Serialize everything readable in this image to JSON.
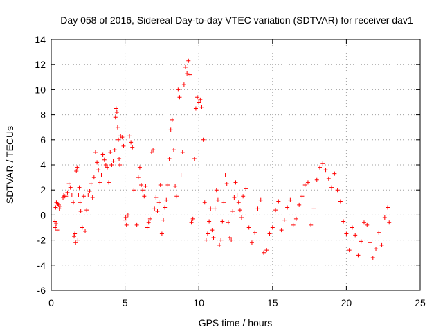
{
  "chart_data": {
    "type": "scatter",
    "title": "Day 058 of 2016, Sidereal Day-to-day VTEC variation (SDTVAR) for receiver dav1",
    "xlabel": "GPS time / hours",
    "ylabel": "SDTVAR / TECUs",
    "xlim": [
      0,
      25
    ],
    "ylim": [
      -6,
      14
    ],
    "x_ticks": [
      "0",
      "5",
      "10",
      "15",
      "20",
      "25"
    ],
    "y_ticks": [
      "-6",
      "-4",
      "-2",
      "0",
      "2",
      "4",
      "6",
      "8",
      "10",
      "12",
      "14"
    ],
    "grid": true,
    "marker": "plus",
    "marker_color": "#ff0000",
    "series": [
      {
        "name": "SDTVAR",
        "x": [
          0.25,
          0.28,
          0.3,
          0.33,
          0.35,
          0.4,
          0.45,
          0.5,
          0.55,
          0.6,
          0.8,
          0.85,
          0.9,
          1.0,
          1.1,
          1.2,
          1.3,
          1.4,
          1.5,
          1.55,
          1.6,
          1.65,
          1.7,
          1.75,
          1.8,
          1.85,
          1.9,
          1.95,
          2.0,
          2.1,
          2.2,
          2.3,
          2.4,
          2.5,
          2.6,
          2.7,
          2.8,
          2.9,
          3.0,
          3.1,
          3.2,
          3.3,
          3.4,
          3.5,
          3.6,
          3.7,
          3.8,
          3.9,
          4.0,
          4.1,
          4.2,
          4.3,
          4.35,
          4.4,
          4.45,
          4.5,
          4.55,
          4.6,
          4.65,
          4.7,
          4.8,
          4.9,
          5.0,
          5.05,
          5.1,
          5.2,
          5.3,
          5.4,
          5.5,
          5.6,
          5.8,
          5.9,
          6.0,
          6.1,
          6.2,
          6.3,
          6.4,
          6.5,
          6.6,
          6.7,
          6.8,
          6.9,
          7.0,
          7.1,
          7.2,
          7.3,
          7.4,
          7.5,
          7.6,
          7.7,
          7.8,
          7.9,
          8.0,
          8.1,
          8.2,
          8.3,
          8.4,
          8.5,
          8.6,
          8.7,
          8.8,
          8.9,
          9.0,
          9.1,
          9.2,
          9.3,
          9.4,
          9.5,
          9.6,
          9.7,
          9.8,
          9.9,
          10.0,
          10.1,
          10.2,
          10.3,
          10.4,
          10.5,
          10.6,
          10.7,
          10.8,
          10.9,
          11.0,
          11.1,
          11.2,
          11.3,
          11.4,
          11.5,
          11.6,
          11.7,
          11.8,
          11.9,
          12.0,
          12.1,
          12.2,
          12.3,
          12.4,
          12.5,
          12.6,
          12.7,
          12.8,
          12.9,
          13.0,
          13.2,
          13.4,
          13.6,
          13.8,
          14.0,
          14.2,
          14.4,
          14.6,
          14.8,
          15.0,
          15.2,
          15.4,
          15.6,
          15.8,
          16.0,
          16.2,
          16.4,
          16.6,
          16.8,
          17.0,
          17.2,
          17.4,
          17.6,
          17.8,
          18.0,
          18.2,
          18.4,
          18.6,
          18.8,
          19.0,
          19.2,
          19.4,
          19.6,
          19.8,
          20.0,
          20.2,
          20.4,
          20.6,
          20.8,
          21.0,
          21.2,
          21.4,
          21.6,
          21.8,
          22.0,
          22.2,
          22.4,
          22.6,
          22.8,
          22.9
        ],
        "y": [
          -0.5,
          -1.0,
          0.6,
          -0.7,
          1.0,
          -1.2,
          0.9,
          0.8,
          0.5,
          0.7,
          1.4,
          1.6,
          1.5,
          1.5,
          1.8,
          2.5,
          2.2,
          1.6,
          1.0,
          -1.7,
          -1.5,
          -2.2,
          3.5,
          3.8,
          -2.0,
          1.6,
          2.2,
          1.0,
          0.3,
          -1.0,
          1.5,
          -1.3,
          0.4,
          1.6,
          1.9,
          2.5,
          1.4,
          3.0,
          5.0,
          4.2,
          3.6,
          2.6,
          3.2,
          4.8,
          4.4,
          4.0,
          3.8,
          2.6,
          5.0,
          4.0,
          4.3,
          5.2,
          7.8,
          8.5,
          8.2,
          7.0,
          6.0,
          4.5,
          4.0,
          6.3,
          6.2,
          5.5,
          -0.4,
          -0.2,
          -0.8,
          0.0,
          6.3,
          5.8,
          5.4,
          2.0,
          -0.8,
          3.0,
          3.8,
          2.4,
          2.0,
          1.5,
          2.3,
          -1.0,
          -0.6,
          -0.3,
          5.0,
          5.2,
          0.5,
          1.4,
          0.3,
          1.0,
          2.4,
          -1.5,
          -0.4,
          0.6,
          1.2,
          2.4,
          4.5,
          6.8,
          7.6,
          5.2,
          2.3,
          1.5,
          10.0,
          9.4,
          3.2,
          5.0,
          10.4,
          11.8,
          11.3,
          12.3,
          11.2,
          -0.6,
          -0.3,
          4.5,
          8.5,
          9.4,
          9.0,
          9.2,
          8.6,
          6.0,
          1.0,
          -2.0,
          -1.5,
          -0.5,
          0.5,
          -1.2,
          -1.8,
          0.5,
          2.0,
          1.2,
          -2.4,
          -2.0,
          -0.5,
          1.0,
          3.2,
          2.5,
          -0.6,
          -1.8,
          -2.0,
          0.3,
          1.4,
          2.6,
          1.6,
          1.0,
          0.4,
          -0.2,
          1.5,
          2.1,
          -1.0,
          -2.2,
          -1.4,
          0.5,
          1.2,
          -3.0,
          -2.8,
          -1.5,
          -1.0,
          0.4,
          1.1,
          -1.2,
          -0.4,
          0.6,
          1.2,
          -0.8,
          -0.3,
          0.8,
          1.5,
          2.4,
          2.6,
          -0.8,
          0.5,
          2.8,
          3.8,
          4.1,
          3.6,
          2.9,
          2.2,
          3.3,
          2.0,
          1.1,
          -0.5,
          -1.5,
          -2.8,
          -1.0,
          -1.6,
          -3.2,
          -2.1,
          -0.6,
          -0.8,
          -2.2,
          -3.4,
          -2.7,
          -1.4,
          -2.4,
          -0.2,
          0.6,
          -0.6
        ]
      }
    ]
  }
}
